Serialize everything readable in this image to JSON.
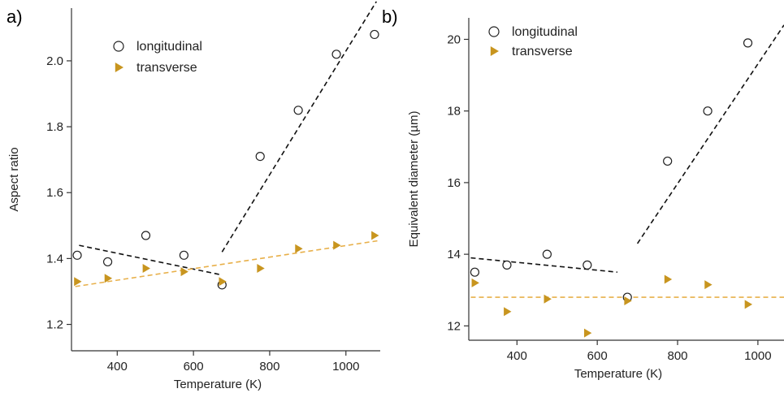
{
  "colors": {
    "longitudinal_marker": "#222222",
    "transverse_marker": "#c8951f",
    "longitudinal_fit": "#111111",
    "transverse_fit": "#e8b04a",
    "axis": "#333333"
  },
  "chart_data": [
    {
      "type": "scatter",
      "panel_label": "a)",
      "xlabel": "Temperature (K)",
      "ylabel": "Aspect ratio",
      "xlim": [
        280,
        1090
      ],
      "ylim": [
        1.12,
        2.16
      ],
      "xticks": [
        "400",
        "600",
        "800",
        "1000"
      ],
      "yticks": [
        "1.2",
        "1.4",
        "1.6",
        "1.8",
        "2.0"
      ],
      "legend_position": "top-left",
      "series": [
        {
          "name": "longitudinal",
          "marker": "open-circle",
          "x": [
            295,
            375,
            475,
            575,
            675,
            775,
            875,
            975,
            1075
          ],
          "y": [
            1.41,
            1.39,
            1.47,
            1.41,
            1.32,
            1.71,
            1.85,
            2.02,
            2.08
          ]
        },
        {
          "name": "transverse",
          "marker": "filled-triangle-right",
          "x": [
            295,
            375,
            475,
            575,
            675,
            775,
            875,
            975,
            1075
          ],
          "y": [
            1.33,
            1.34,
            1.37,
            1.36,
            1.33,
            1.37,
            1.43,
            1.44,
            1.47
          ]
        }
      ],
      "fit_lines": [
        {
          "series": "longitudinal",
          "x": [
            300,
            675
          ],
          "y": [
            1.44,
            1.35
          ]
        },
        {
          "series": "longitudinal",
          "x": [
            675,
            1080
          ],
          "y": [
            1.42,
            2.18
          ]
        },
        {
          "series": "transverse",
          "x": [
            290,
            1090
          ],
          "y": [
            1.315,
            1.455
          ]
        }
      ]
    },
    {
      "type": "scatter",
      "panel_label": "b)",
      "xlabel": "Temperature (K)",
      "ylabel": "Equivalent diameter (µm)",
      "xlim": [
        280,
        1065
      ],
      "ylim": [
        11.6,
        20.6
      ],
      "xticks": [
        "400",
        "600",
        "800",
        "1000"
      ],
      "yticks": [
        "12",
        "14",
        "16",
        "18",
        "20"
      ],
      "legend_position": "top-left",
      "series": [
        {
          "name": "longitudinal",
          "marker": "open-circle",
          "x": [
            295,
            375,
            475,
            575,
            675,
            775,
            875,
            975
          ],
          "y": [
            13.5,
            13.7,
            14.0,
            13.7,
            12.8,
            16.6,
            18.0,
            19.9
          ]
        },
        {
          "name": "transverse",
          "marker": "filled-triangle-right",
          "x": [
            295,
            375,
            475,
            575,
            675,
            775,
            875,
            975
          ],
          "y": [
            13.2,
            12.4,
            12.75,
            11.8,
            12.7,
            13.3,
            13.15,
            12.6
          ]
        }
      ],
      "fit_lines": [
        {
          "series": "longitudinal",
          "x": [
            285,
            650
          ],
          "y": [
            13.9,
            13.5
          ]
        },
        {
          "series": "longitudinal",
          "x": [
            700,
            1065
          ],
          "y": [
            14.3,
            20.4
          ]
        },
        {
          "series": "transverse",
          "x": [
            285,
            1065
          ],
          "y": [
            12.8,
            12.8
          ]
        }
      ]
    }
  ]
}
